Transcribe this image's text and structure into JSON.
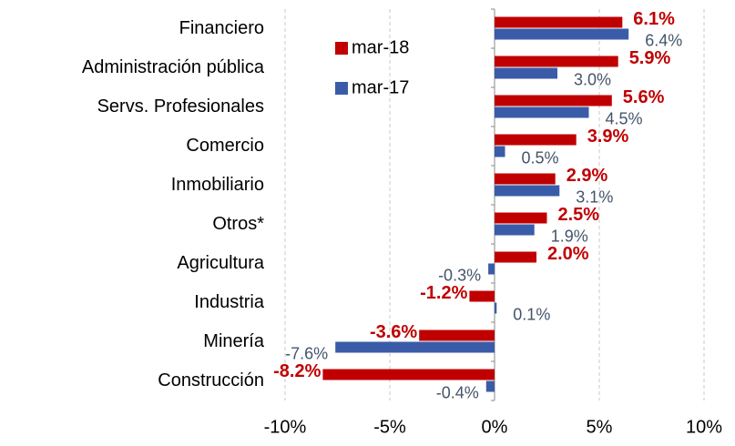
{
  "chart_data": {
    "type": "bar",
    "orientation": "horizontal",
    "categories": [
      "Financiero",
      "Administración pública",
      "Servs. Profesionales",
      "Comercio",
      "Inmobiliario",
      "Otros*",
      "Agricultura",
      "Industria",
      "Minería",
      "Construcción"
    ],
    "series": [
      {
        "name": "mar-18",
        "color": "#c00000",
        "values": [
          6.1,
          5.9,
          5.6,
          3.9,
          2.9,
          2.5,
          2.0,
          -1.2,
          -3.6,
          -8.2
        ],
        "value_labels": [
          "6.1%",
          "5.9%",
          "5.6%",
          "3.9%",
          "2.9%",
          "2.5%",
          "2.0%",
          "-1.2%",
          "-3.6%",
          "-8.2%"
        ]
      },
      {
        "name": "mar-17",
        "color": "#3a5ca8",
        "values": [
          6.4,
          3.0,
          4.5,
          0.5,
          3.1,
          1.9,
          -0.3,
          0.1,
          -7.6,
          -0.4
        ],
        "value_labels": [
          "6.4%",
          "3.0%",
          "4.5%",
          "0.5%",
          "3.1%",
          "1.9%",
          "-0.3%",
          "0.1%",
          "-7.6%",
          "-0.4%"
        ]
      }
    ],
    "xlim": [
      -10,
      10
    ],
    "xticks": [
      {
        "value": -10,
        "label": "-10%"
      },
      {
        "value": -5,
        "label": "-5%"
      },
      {
        "value": 0,
        "label": "0%"
      },
      {
        "value": 5,
        "label": "5%"
      },
      {
        "value": 10,
        "label": "10%"
      }
    ],
    "grid": true,
    "legend": "top"
  }
}
